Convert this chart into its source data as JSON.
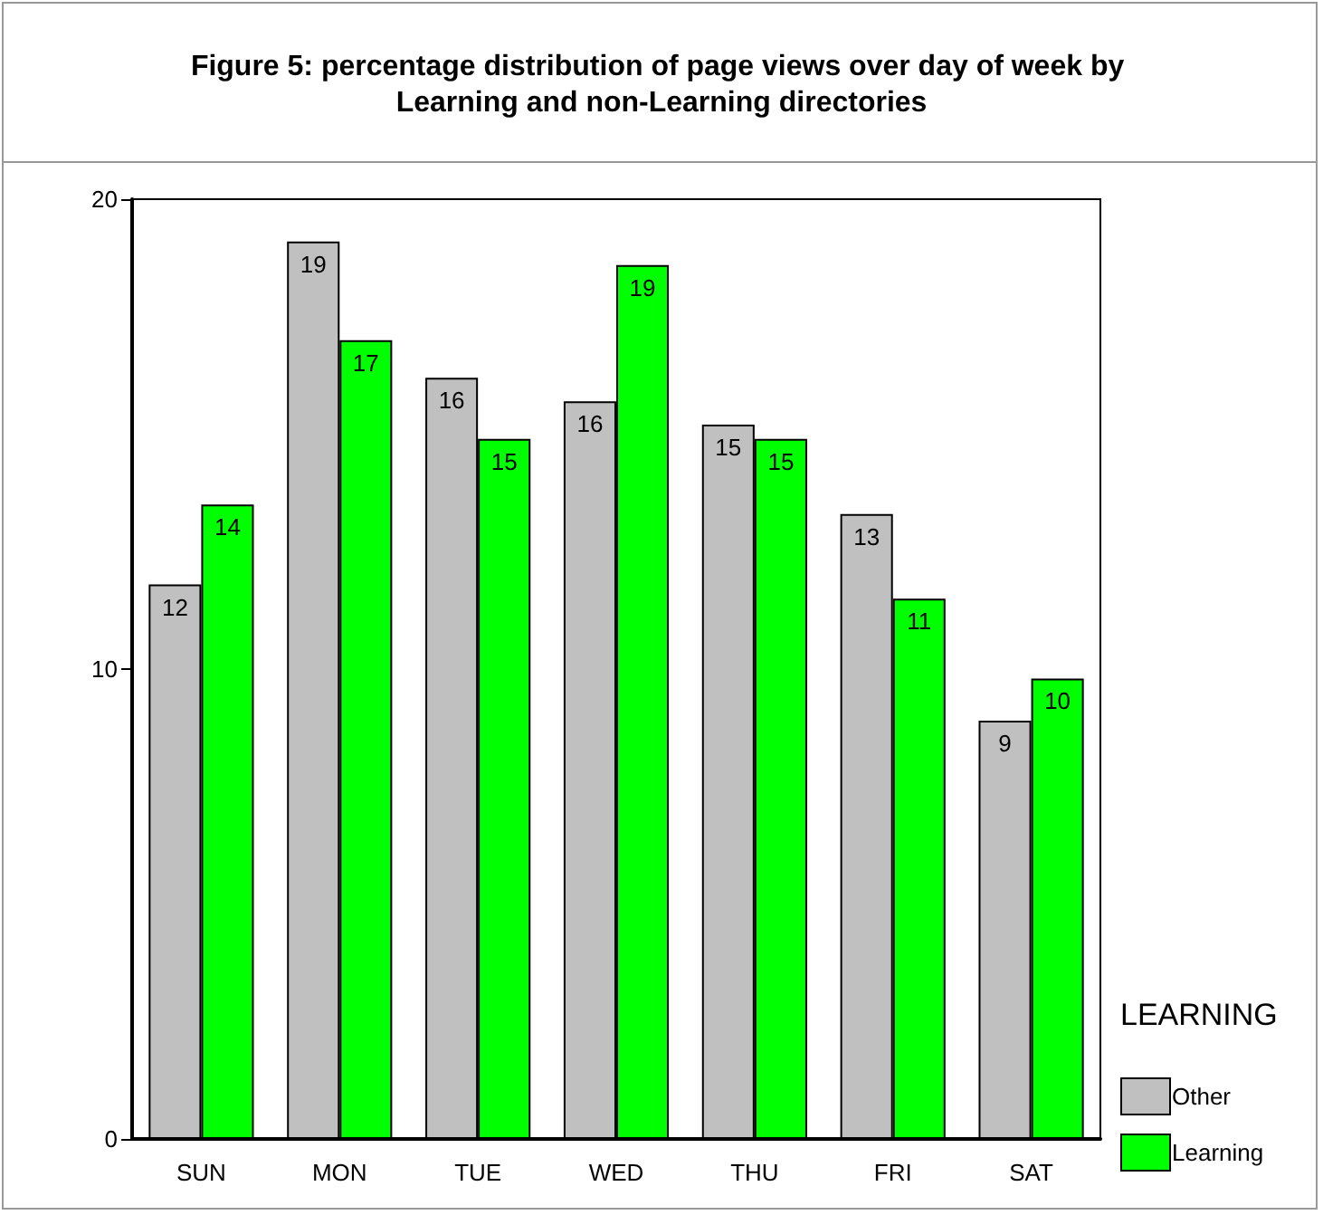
{
  "chart_data": {
    "type": "bar",
    "title": "Figure 5: percentage distribution of page views over day of week by Learning and non-Learning directories",
    "categories": [
      "SUN",
      "MON",
      "TUE",
      "WED",
      "THU",
      "FRI",
      "SAT"
    ],
    "series": [
      {
        "name": "Other",
        "color": "#c0c0c0",
        "values": [
          11.8,
          19.1,
          16.2,
          15.7,
          15.2,
          13.3,
          8.9
        ],
        "value_labels": [
          "12",
          "19",
          "16",
          "16",
          "15",
          "13",
          "9"
        ]
      },
      {
        "name": "Learning",
        "color": "#00ff00",
        "values": [
          13.5,
          17.0,
          14.9,
          18.6,
          14.9,
          11.5,
          9.8
        ],
        "value_labels": [
          "14",
          "17",
          "15",
          "19",
          "15",
          "11",
          "10"
        ]
      }
    ],
    "ylim": [
      0,
      20
    ],
    "yticks": [
      0,
      10,
      20
    ],
    "grid": false,
    "legend": "right",
    "legend_title": "LEARNING"
  }
}
